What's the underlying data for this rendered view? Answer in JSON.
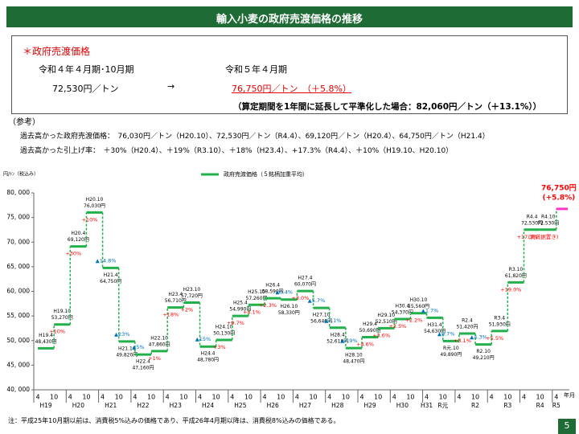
{
  "page": {
    "title": "輸入小麦の政府売渡価格の推移",
    "heading": "＊政府売渡価格",
    "period_before": "令和４年４月期･10月期",
    "period_after": "令和５年４月期",
    "price_before": "72,530円／トン",
    "arrow": "→",
    "price_after": "76,750円／トン　（＋5.8%）",
    "note_1year": "（算定期間を1年間に延長して平準化した場合：82,060円／トン（＋13.1%））",
    "ref_heading": "（参考）",
    "ref_prices": "過去高かった政府売渡価格：　76,030円／トン（H20.10）、72,530円／トン（R4.4）、69,120円／トン（H20.4）、64,750円／トン（H21.4）",
    "ref_rates": "過去高かった引上げ率：　＋30%（H20.4）、＋19%（R3.10）、＋18%（H23.4）、+17.3%（R4.4）、＋10%（H19.10、H20.10）",
    "footnote": "注：平成25年10月期以前は、消費税5%込みの価格であり、平成26年4月期以降は、消費税8%込みの価格である。",
    "page_number": "5"
  },
  "chart_data": {
    "type": "step",
    "y_unit": "円/ﾄﾝ（税込み）",
    "x_unit": "年月",
    "categories": [
      "H19.4",
      "H19.10",
      "H20.4",
      "H20.10",
      "H21.4",
      "H21.10",
      "H22.4",
      "H22.10",
      "H23.4",
      "H23.10",
      "H24.4",
      "H24.10",
      "H25.4",
      "H25.10",
      "H26.4",
      "H26.10",
      "H27.4",
      "H27.10",
      "H28.4",
      "H28.10",
      "H29.4",
      "H29.10",
      "H30.4",
      "H30.10",
      "H31.4",
      "R元.10",
      "R2.4",
      "R2.10",
      "R3.4",
      "R3.10",
      "R4.4",
      "R4.10",
      null
    ],
    "months": [
      "4",
      "10",
      "4",
      "10",
      "4",
      "10",
      "4",
      "10",
      "4",
      "10",
      "4",
      "10",
      "4",
      "10",
      "4",
      "10",
      "4",
      "10",
      "4",
      "10",
      "4",
      "10",
      "4",
      "10",
      "4",
      "10",
      "4",
      "10",
      "4",
      "10",
      "4",
      "10",
      "4"
    ],
    "years": [
      null,
      "H19",
      null,
      "H20",
      null,
      "H21",
      null,
      "H22",
      null,
      "H23",
      null,
      "H24",
      null,
      "H25",
      null,
      "H26",
      null,
      "H27",
      null,
      "H28",
      null,
      "H29",
      null,
      "H30",
      "H31",
      "R元",
      null,
      "R2",
      null,
      "R3",
      null,
      "R4",
      "R5"
    ],
    "series": [
      {
        "name": "政府売渡価格（５銘柄加重平均）",
        "color": "#22b04b",
        "highlight_color": "#ff33cc",
        "values": [
          48430,
          53270,
          69120,
          76030,
          64750,
          49820,
          47160,
          47860,
          56710,
          57720,
          48780,
          50130,
          54990,
          57260,
          58590,
          58330,
          60070,
          56640,
          52610,
          48470,
          50690,
          52510,
          54370,
          55560,
          54630,
          49890,
          51420,
          49210,
          51930,
          61820,
          72530,
          72530,
          76750
        ],
        "value_labels": [
          "48,430円",
          "53,270円",
          "69,120円",
          "76,030円",
          "64,750円",
          "49,820円",
          "47,160円",
          "47,860円",
          "56,710円",
          "57,720円",
          "48,780円",
          "50,130円",
          "54,990円",
          "57,260円",
          "58,590円",
          "58,330円",
          "60,070円",
          "56,640円",
          "52,610円",
          "48,470円",
          "50,690円",
          "52,510円",
          "54,370円",
          "55,560円",
          "54,630円",
          "49,890円",
          "51,420円",
          "49,210円",
          "51,930円",
          "61,820円",
          "72,530円",
          "72,530円",
          "76,750円"
        ],
        "changes": [
          null,
          "+10%",
          "+30%",
          "+10%",
          "▲14.8%",
          "▲23%",
          "▲5%",
          "+1%",
          "+18%",
          "+2%",
          "▲15%",
          "+3%",
          "+9.7%",
          "+4.1%",
          "+2.3%",
          "▲0.4%",
          "+3.0%",
          "▲5.7%",
          "▲7.1%",
          "▲7.9%",
          "+4.6%",
          "+3.6%",
          "+3.5%",
          "+2.2%",
          "▲1.7%",
          "▲8.7%",
          "+3.1%",
          "▲4.3%",
          "+5.5%",
          "+19.0%",
          "+17.3%",
          "(実質据置き)",
          "(+5.8%)"
        ]
      }
    ],
    "up_color": "#ff0000",
    "down_color": "#0070c0",
    "ylim": [
      40000,
      80000
    ],
    "yticks": [
      {
        "value": 40000,
        "label": "40, 000"
      },
      {
        "value": 45000,
        "label": "45, 000"
      },
      {
        "value": 50000,
        "label": "50, 000"
      },
      {
        "value": 55000,
        "label": "55, 000"
      },
      {
        "value": 60000,
        "label": "60, 000"
      },
      {
        "value": 65000,
        "label": "65, 000"
      },
      {
        "value": 70000,
        "label": "70, 000"
      },
      {
        "value": 75000,
        "label": "75, 000"
      },
      {
        "value": 80000,
        "label": "80, 000"
      }
    ]
  }
}
